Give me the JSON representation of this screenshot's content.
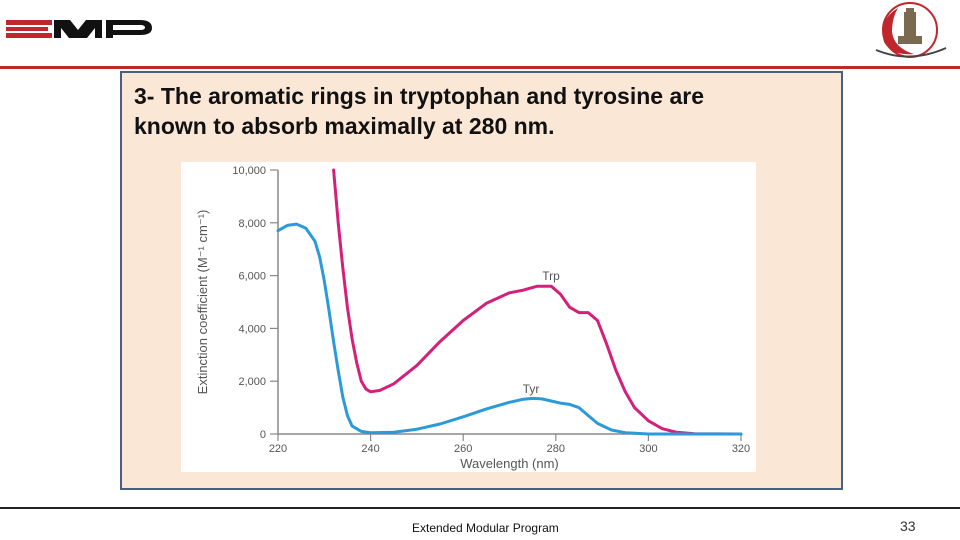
{
  "slide": {
    "title_lines": [
      "3- The aromatic rings in tryptophan and tyrosine are",
      "known to absorb maximally at 280 nm."
    ],
    "footer": "Extended Modular Program",
    "page_number": "33"
  },
  "colors": {
    "header_rule": "#c0272d",
    "box_background": "#fbe7d6",
    "box_border": "#4a6080",
    "trp_line": "#d4207a",
    "tyr_line": "#2a9ad8"
  },
  "chart_data": {
    "type": "line",
    "xlabel": "Wavelength (nm)",
    "ylabel": "Extinction coefficient (M⁻¹ cm⁻¹)",
    "xlim": [
      220,
      320
    ],
    "ylim": [
      0,
      10000
    ],
    "x_ticks": [
      220,
      240,
      260,
      280,
      300,
      320
    ],
    "x_tick_labels": [
      "220",
      "240",
      "260",
      "280",
      "300",
      "320"
    ],
    "y_ticks": [
      0,
      2000,
      4000,
      6000,
      8000,
      10000
    ],
    "y_tick_labels": [
      "0",
      "2,000",
      "4,000",
      "6,000",
      "8,000",
      "10,000"
    ],
    "grid": false,
    "series": [
      {
        "name": "Trp",
        "color": "#d4207a",
        "points": [
          [
            232,
            10000
          ],
          [
            233,
            8000
          ],
          [
            234,
            6300
          ],
          [
            235,
            4800
          ],
          [
            236,
            3600
          ],
          [
            237,
            2700
          ],
          [
            238,
            2000
          ],
          [
            239,
            1700
          ],
          [
            240,
            1600
          ],
          [
            242,
            1650
          ],
          [
            245,
            1900
          ],
          [
            250,
            2600
          ],
          [
            255,
            3500
          ],
          [
            260,
            4300
          ],
          [
            265,
            4950
          ],
          [
            270,
            5350
          ],
          [
            273,
            5450
          ],
          [
            276,
            5600
          ],
          [
            279,
            5600
          ],
          [
            281,
            5300
          ],
          [
            283,
            4800
          ],
          [
            285,
            4600
          ],
          [
            287,
            4600
          ],
          [
            289,
            4300
          ],
          [
            291,
            3400
          ],
          [
            293,
            2400
          ],
          [
            295,
            1600
          ],
          [
            297,
            1000
          ],
          [
            300,
            500
          ],
          [
            303,
            200
          ],
          [
            306,
            70
          ],
          [
            310,
            10
          ],
          [
            320,
            0
          ]
        ]
      },
      {
        "name": "Tyr",
        "color": "#2a9ad8",
        "points": [
          [
            220,
            7700
          ],
          [
            222,
            7900
          ],
          [
            224,
            7950
          ],
          [
            226,
            7800
          ],
          [
            228,
            7300
          ],
          [
            229,
            6700
          ],
          [
            230,
            5800
          ],
          [
            231,
            4700
          ],
          [
            232,
            3500
          ],
          [
            233,
            2400
          ],
          [
            234,
            1400
          ],
          [
            235,
            700
          ],
          [
            236,
            300
          ],
          [
            238,
            100
          ],
          [
            240,
            50
          ],
          [
            245,
            70
          ],
          [
            250,
            180
          ],
          [
            255,
            380
          ],
          [
            260,
            650
          ],
          [
            265,
            950
          ],
          [
            270,
            1200
          ],
          [
            273,
            1320
          ],
          [
            275,
            1350
          ],
          [
            277,
            1330
          ],
          [
            279,
            1250
          ],
          [
            281,
            1170
          ],
          [
            283,
            1120
          ],
          [
            285,
            1000
          ],
          [
            287,
            700
          ],
          [
            289,
            400
          ],
          [
            292,
            150
          ],
          [
            295,
            50
          ],
          [
            300,
            0
          ],
          [
            320,
            0
          ]
        ]
      }
    ]
  }
}
